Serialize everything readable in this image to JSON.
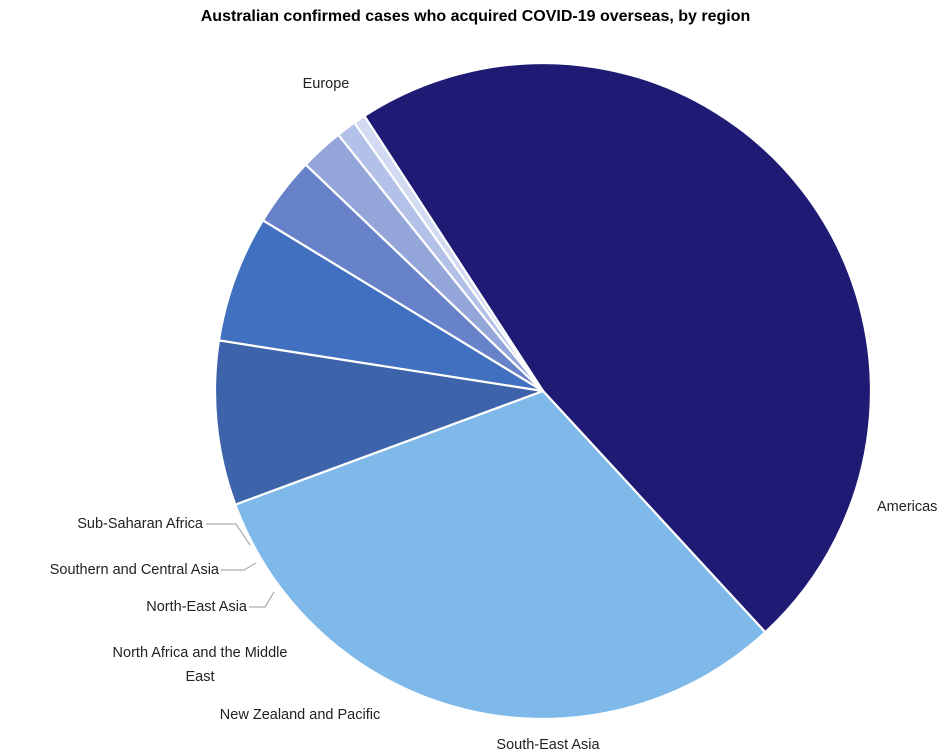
{
  "chart_data": {
    "type": "pie",
    "title": "Australian confirmed cases who acquired COVID-19 overseas, by region",
    "categories": [
      "Europe",
      "Americas",
      "South-East Asia",
      "New Zealand and Pacific",
      "North Africa and the Middle East",
      "North-East Asia",
      "Southern and Central Asia",
      "Sub-Saharan Africa"
    ],
    "values": [
      48.5,
      32.0,
      8.3,
      6.4,
      3.5,
      2.2,
      1.0,
      0.6
    ],
    "units": "percent (estimated share of pie)",
    "colors": [
      "#1f1a73",
      "#7fb9ea",
      "#3d63ab",
      "#4070bf",
      "#6882c9",
      "#93a5d9",
      "#b3c1e8",
      "#d3dbf2"
    ],
    "start_direction": "clockwise from upper-right",
    "legend": "none; category labels placed beside slices"
  }
}
